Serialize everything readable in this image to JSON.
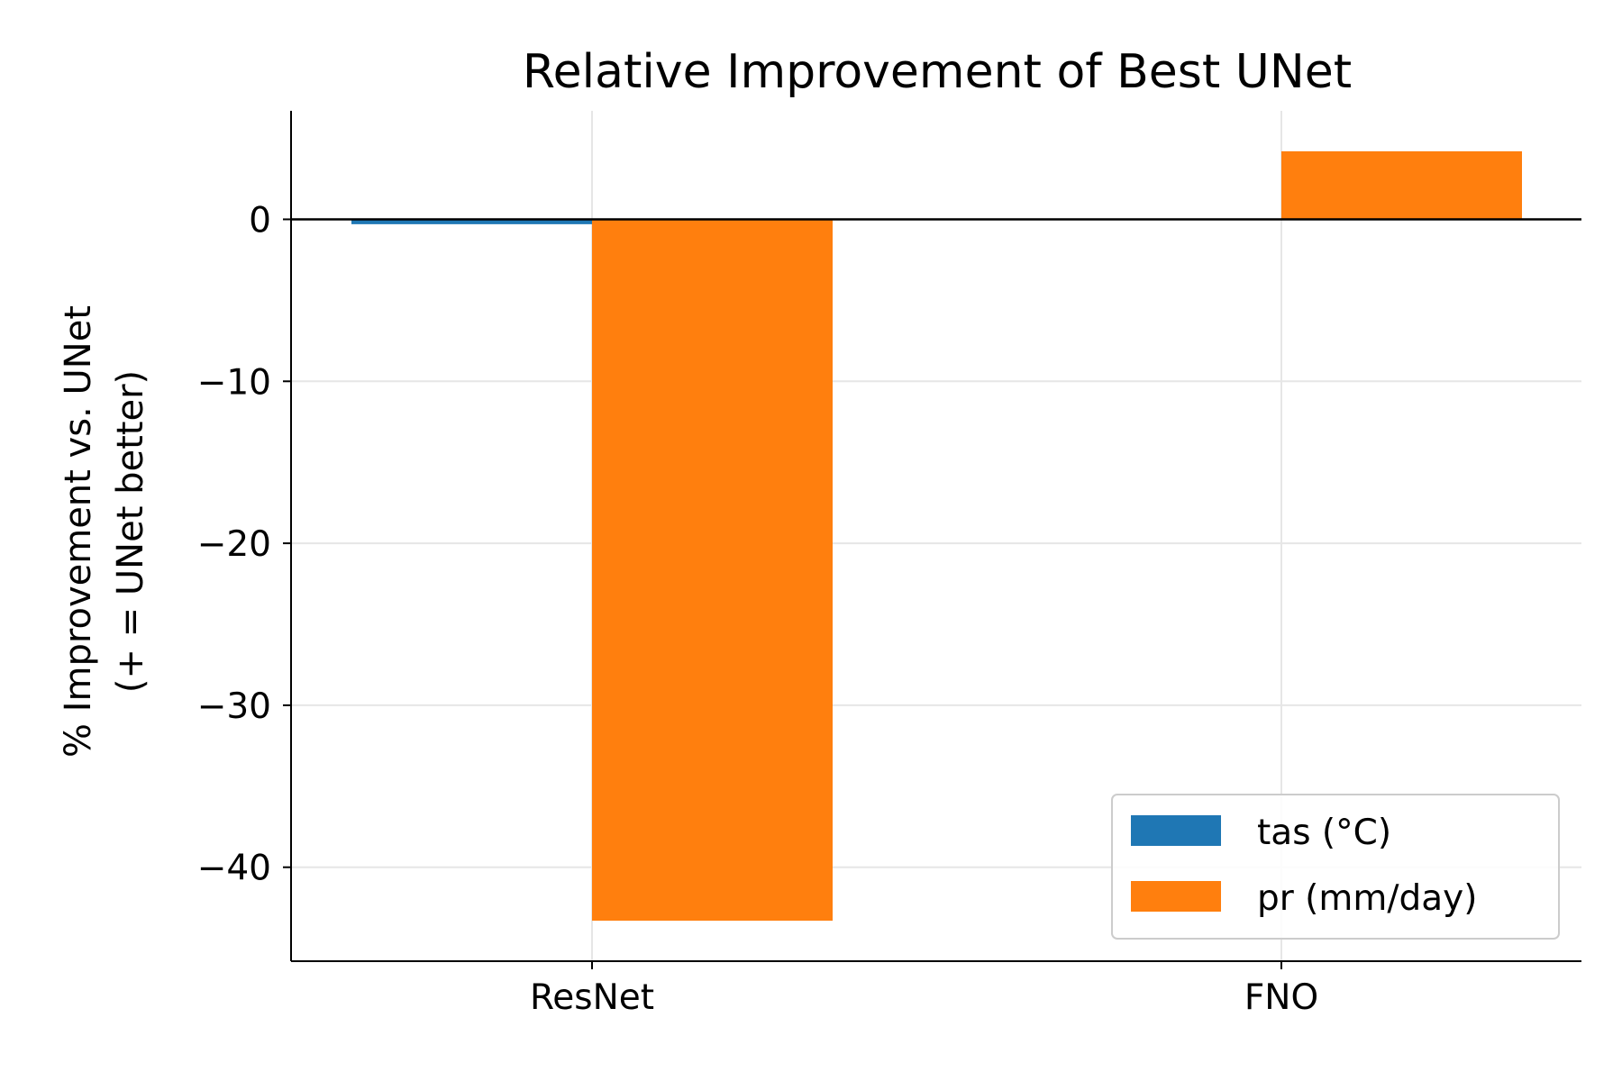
{
  "chart_data": {
    "type": "bar",
    "title": "Relative Improvement of Best UNet",
    "xlabel": "",
    "ylabel": "% Improvement vs. UNet",
    "ylabel_line2": "(+ = UNet better)",
    "categories": [
      "ResNet",
      "FNO"
    ],
    "series": [
      {
        "name": "tas (°C)",
        "color": "#1f77b4",
        "values": [
          -0.3,
          0.0
        ]
      },
      {
        "name": "pr (mm/day)",
        "color": "#ff7f0e",
        "values": [
          -43.3,
          4.2
        ]
      }
    ],
    "ylim": [
      -45.8,
      6.7
    ],
    "yticks": [
      0,
      -10,
      -20,
      -30,
      -40
    ],
    "ytick_labels": [
      "0",
      "−10",
      "−20",
      "−30",
      "−40"
    ],
    "grid": true,
    "zero_line": true,
    "legend_position": "lower-right"
  }
}
